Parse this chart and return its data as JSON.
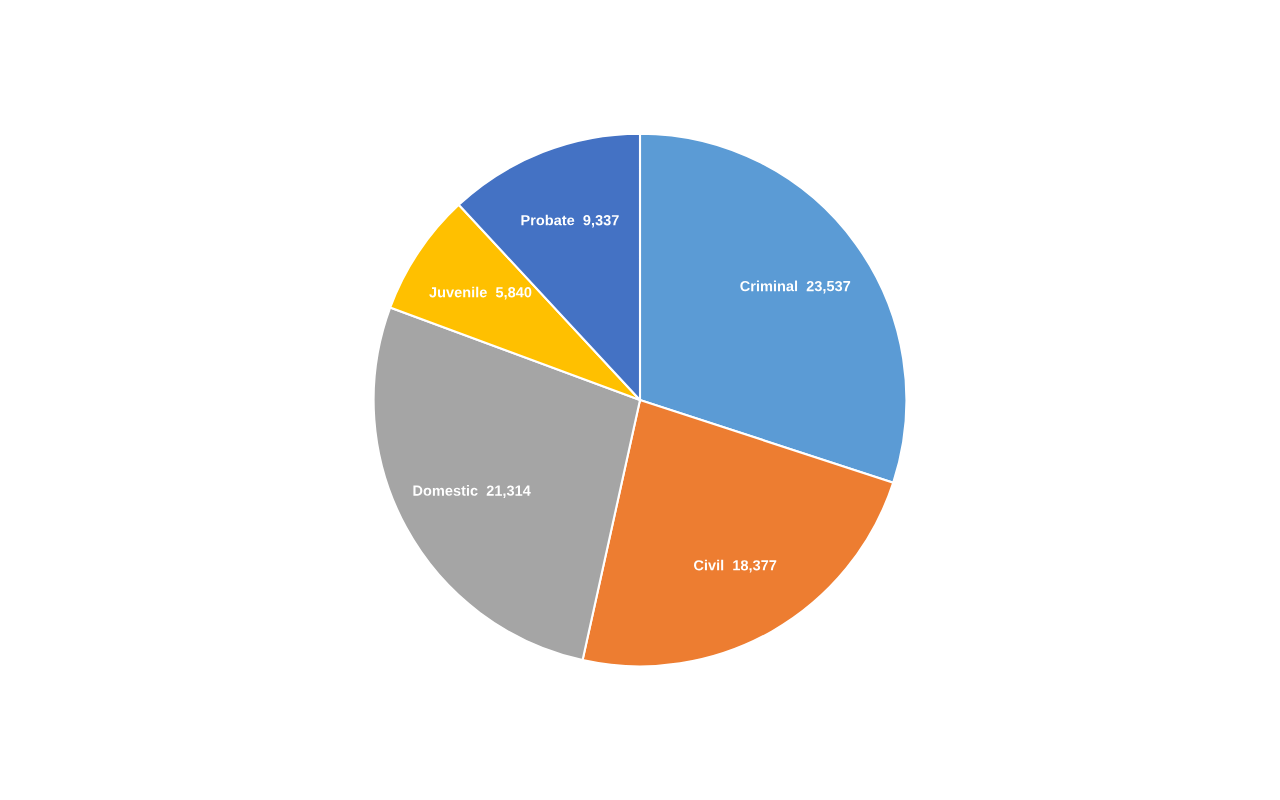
{
  "chart_data": {
    "type": "pie",
    "categories": [
      "Criminal",
      "Civil",
      "Domestic",
      "Juvenile",
      "Probate"
    ],
    "values": [
      23537,
      18377,
      21314,
      5840,
      9337
    ],
    "value_labels": [
      "23,537",
      "18,377",
      "21,314",
      "5,840",
      "9,337"
    ],
    "colors": [
      "#5b9bd5",
      "#ed7d31",
      "#a5a5a5",
      "#ffc000",
      "#4472c4"
    ],
    "legend": false
  }
}
